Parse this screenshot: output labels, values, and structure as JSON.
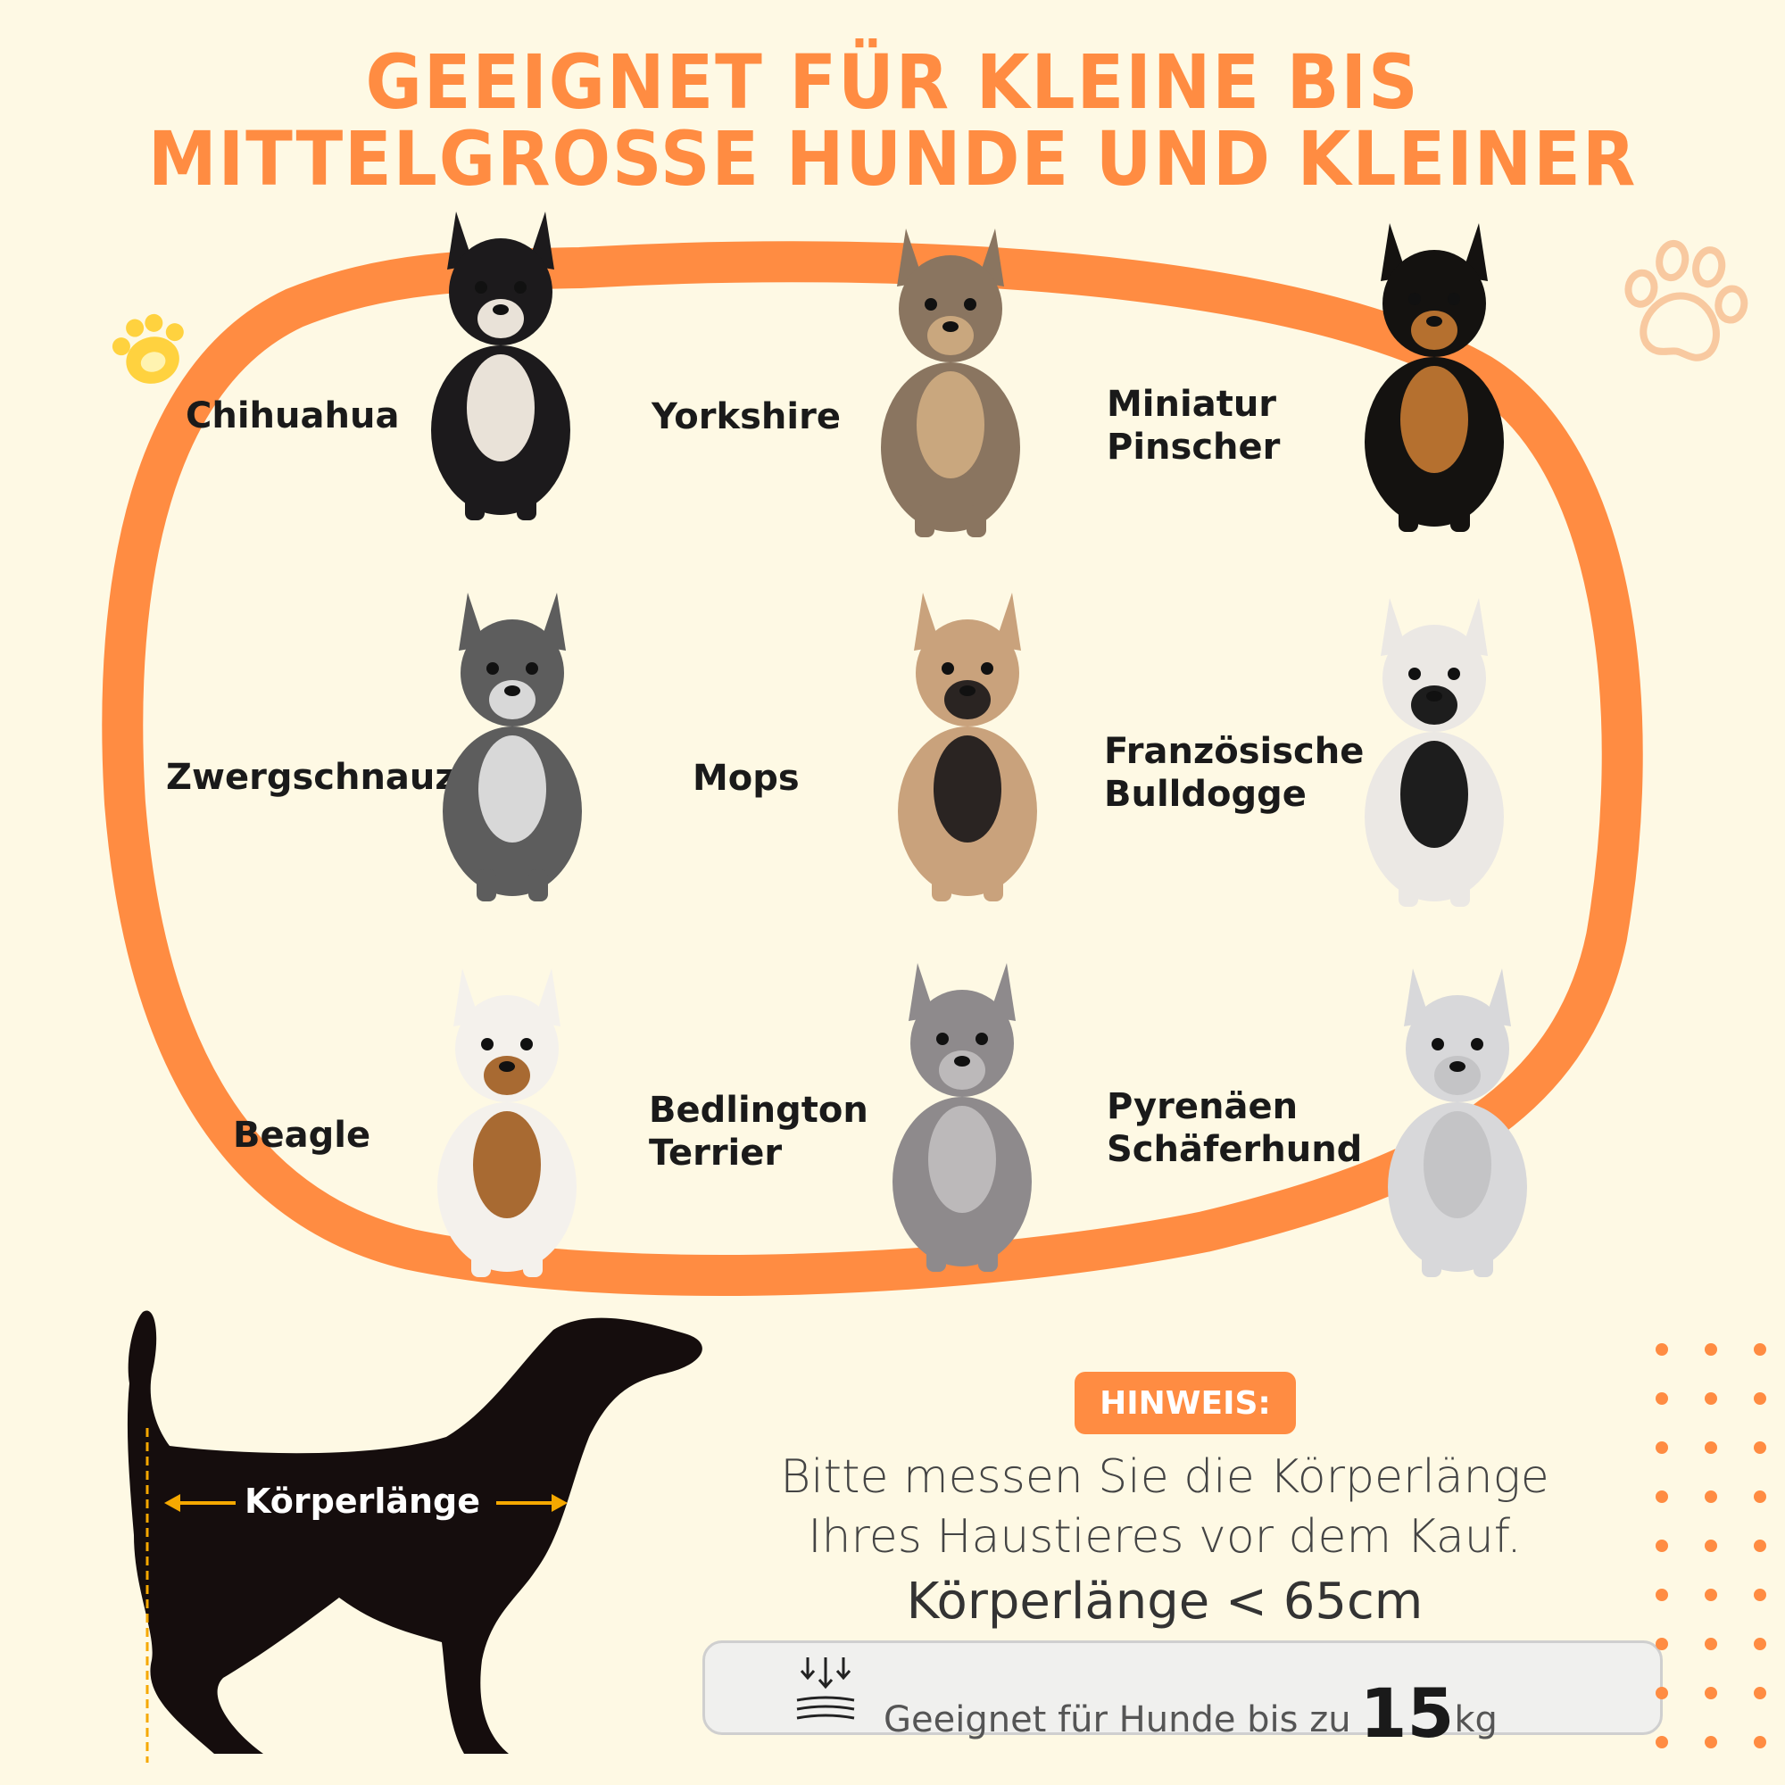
{
  "title": {
    "line1": "GEEIGNET FÜR KLEINE BIS",
    "line2": "MITTELGROSSE HUNDE UND KLEINER"
  },
  "colors": {
    "accent": "#ff8c42",
    "background": "#fef9e4",
    "arrow": "#f5a800",
    "paw_yellow": "#ffd23f",
    "paw_outline": "#f8c9a0"
  },
  "breeds": [
    {
      "label": "Chihuahua"
    },
    {
      "label": "Yorkshire"
    },
    {
      "label": "Miniatur\nPinscher",
      "line1": "Miniatur",
      "line2": "Pinscher"
    },
    {
      "label": "Zwergschnauzer"
    },
    {
      "label": "Mops"
    },
    {
      "label": "Französische Bulldogge",
      "line1": "Französische",
      "line2": "Bulldogge"
    },
    {
      "label": "Beagle"
    },
    {
      "label": "Bedlington Terrier",
      "line1": "Bedlington",
      "line2": "Terrier"
    },
    {
      "label": "Pyrenäen Schäferhund",
      "line1": "Pyrenäen",
      "line2": "Schäferhund"
    }
  ],
  "silhouette": {
    "body_length_label": "Körperlänge"
  },
  "note": {
    "badge": "HINWEIS:",
    "line1": "Bitte messen Sie die Körperlänge",
    "line2": "Ihres Haustieres vor dem Kauf.",
    "limit": "Körperlänge < 65cm"
  },
  "weight": {
    "text": "Geeignet für Hunde bis zu",
    "value": "15",
    "unit": "kg",
    "icon": "weight-pressure-icon"
  }
}
